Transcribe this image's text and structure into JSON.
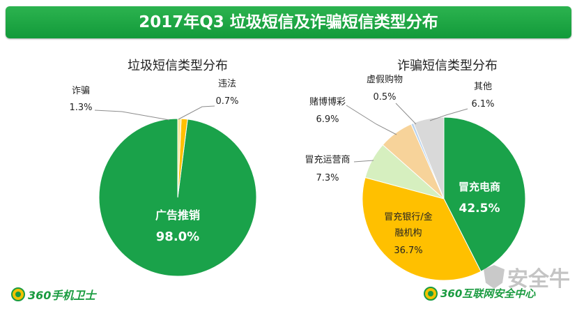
{
  "title": "2017年Q3 垃圾短信及诈骗短信类型分布",
  "footer": {
    "left_brand": "360手机卫士",
    "right_brand": "360互联网安全中心",
    "watermark": "安全牛"
  },
  "colors": {
    "banner": "#1fa847",
    "green": "#1aa24a",
    "orange": "#ffc000",
    "light_green": "#d6efbf",
    "peach": "#f7d39a",
    "light_blue": "#b9d3ee",
    "gray": "#d9d9d9",
    "light_yellow": "#f7e89a"
  },
  "chart_data": [
    {
      "type": "pie",
      "title": "垃圾短信类型分布",
      "slices": [
        {
          "label": "广告推销",
          "value": 98.0,
          "display": "98.0%"
        },
        {
          "label": "诈骗",
          "value": 1.3,
          "display": "1.3%"
        },
        {
          "label": "违法",
          "value": 0.7,
          "display": "0.7%"
        }
      ]
    },
    {
      "type": "pie",
      "title": "诈骗短信类型分布",
      "slices": [
        {
          "label": "冒充电商",
          "value": 42.5,
          "display": "42.5%"
        },
        {
          "label": "冒充银行/金融机构",
          "label_lines": [
            "冒充银行/金",
            "融机构"
          ],
          "value": 36.7,
          "display": "36.7%"
        },
        {
          "label": "冒充运营商",
          "value": 7.3,
          "display": "7.3%"
        },
        {
          "label": "赌博博彩",
          "value": 6.9,
          "display": "6.9%"
        },
        {
          "label": "虚假购物",
          "value": 0.5,
          "display": "0.5%"
        },
        {
          "label": "其他",
          "value": 6.1,
          "display": "6.1%"
        }
      ]
    }
  ]
}
